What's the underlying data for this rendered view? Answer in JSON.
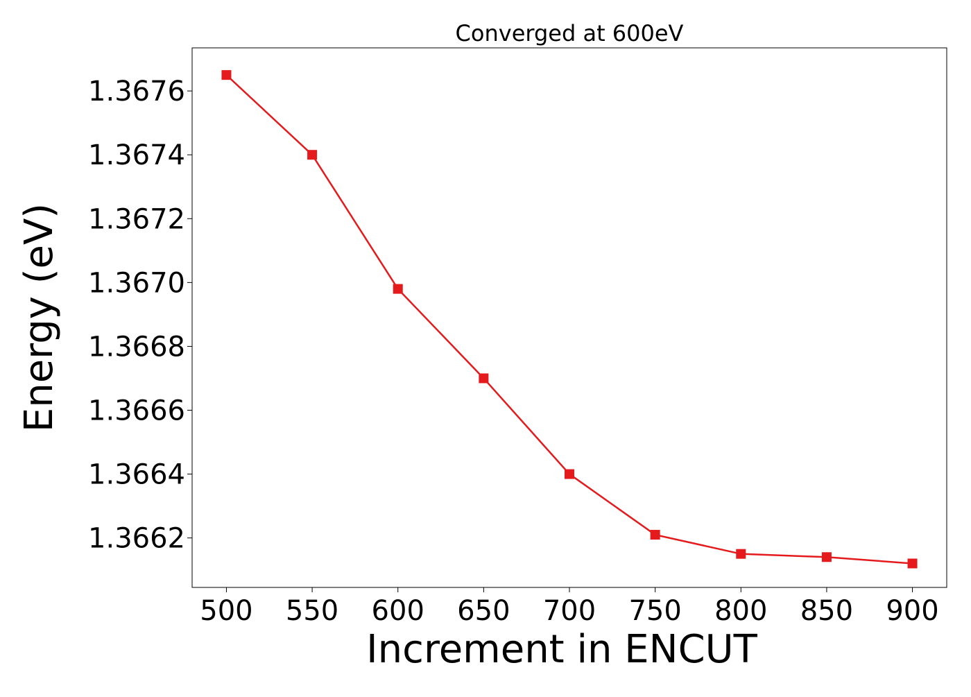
{
  "chart_data": {
    "type": "line",
    "title": "Converged at 600eV",
    "xlabel": "Increment in ENCUT",
    "ylabel": "Energy (eV)",
    "x": [
      500,
      550,
      600,
      650,
      700,
      750,
      800,
      850,
      900
    ],
    "series": [
      {
        "values": [
          1.36765,
          1.3674,
          1.36698,
          1.3667,
          1.3664,
          1.36621,
          1.36615,
          1.36614,
          1.36612
        ],
        "color": "#e41a1c",
        "marker": "square"
      }
    ],
    "xlim": [
      480,
      920
    ],
    "ylim": [
      1.366045,
      1.367735
    ],
    "xticks": [
      500,
      550,
      600,
      650,
      700,
      750,
      800,
      850,
      900
    ],
    "xtick_labels": [
      "500",
      "550",
      "600",
      "650",
      "700",
      "750",
      "800",
      "850",
      "900"
    ],
    "yticks": [
      1.3662,
      1.3664,
      1.3666,
      1.3668,
      1.367,
      1.3672,
      1.3674,
      1.3676
    ],
    "ytick_labels": [
      "1.3662",
      "1.3664",
      "1.3666",
      "1.3668",
      "1.3670",
      "1.3672",
      "1.3674",
      "1.3676"
    ],
    "grid": false,
    "legend": "none"
  }
}
